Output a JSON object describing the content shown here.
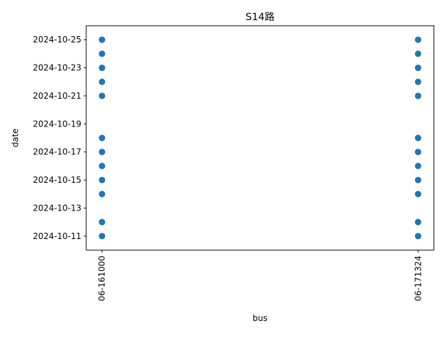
{
  "chart_data": {
    "type": "scatter",
    "title": "S14路",
    "xlabel": "bus",
    "ylabel": "date",
    "categories": [
      "06-161000",
      "06-171324"
    ],
    "y_ticks": [
      "2024-10-11",
      "2024-10-13",
      "2024-10-15",
      "2024-10-17",
      "2024-10-19",
      "2024-10-21",
      "2024-10-23",
      "2024-10-25"
    ],
    "ylim": [
      "2024-10-10",
      "2024-10-26"
    ],
    "grid": false,
    "marker_color": "#1f77b4",
    "series": [
      {
        "points": [
          {
            "x": "06-161000",
            "y": "2024-10-11"
          },
          {
            "x": "06-161000",
            "y": "2024-10-12"
          },
          {
            "x": "06-161000",
            "y": "2024-10-14"
          },
          {
            "x": "06-161000",
            "y": "2024-10-15"
          },
          {
            "x": "06-161000",
            "y": "2024-10-16"
          },
          {
            "x": "06-161000",
            "y": "2024-10-17"
          },
          {
            "x": "06-161000",
            "y": "2024-10-18"
          },
          {
            "x": "06-161000",
            "y": "2024-10-21"
          },
          {
            "x": "06-161000",
            "y": "2024-10-22"
          },
          {
            "x": "06-161000",
            "y": "2024-10-23"
          },
          {
            "x": "06-161000",
            "y": "2024-10-24"
          },
          {
            "x": "06-161000",
            "y": "2024-10-25"
          },
          {
            "x": "06-171324",
            "y": "2024-10-11"
          },
          {
            "x": "06-171324",
            "y": "2024-10-12"
          },
          {
            "x": "06-171324",
            "y": "2024-10-14"
          },
          {
            "x": "06-171324",
            "y": "2024-10-15"
          },
          {
            "x": "06-171324",
            "y": "2024-10-16"
          },
          {
            "x": "06-171324",
            "y": "2024-10-17"
          },
          {
            "x": "06-171324",
            "y": "2024-10-18"
          },
          {
            "x": "06-171324",
            "y": "2024-10-21"
          },
          {
            "x": "06-171324",
            "y": "2024-10-22"
          },
          {
            "x": "06-171324",
            "y": "2024-10-23"
          },
          {
            "x": "06-171324",
            "y": "2024-10-24"
          },
          {
            "x": "06-171324",
            "y": "2024-10-25"
          }
        ]
      }
    ]
  }
}
